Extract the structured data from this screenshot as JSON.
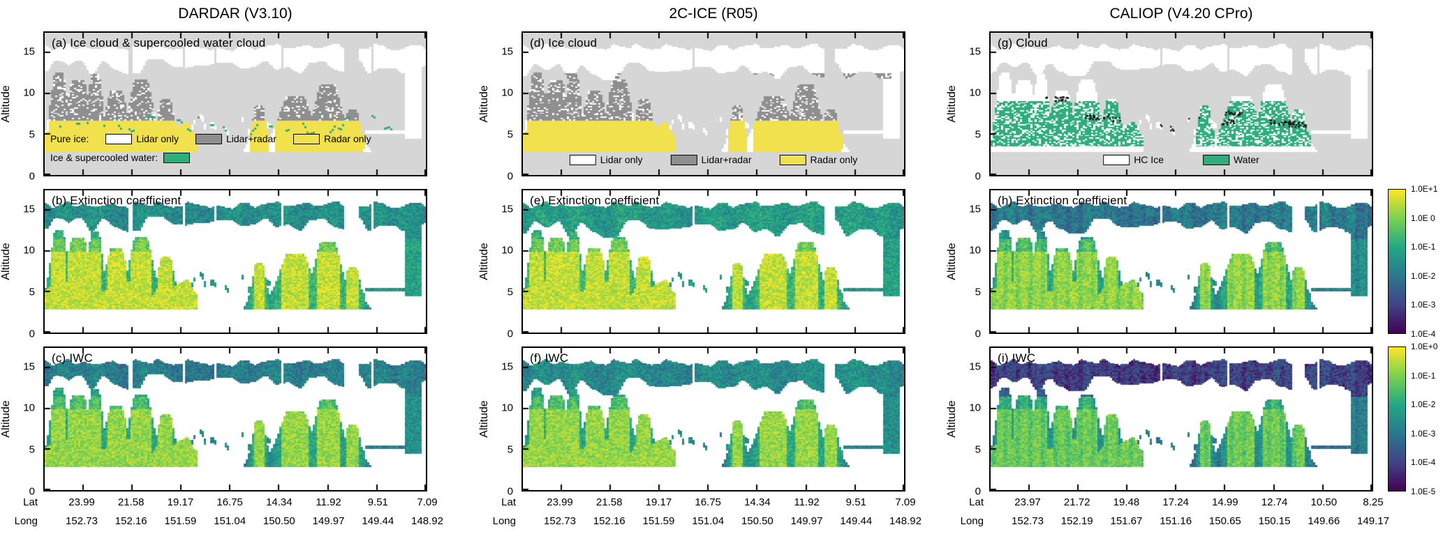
{
  "yaxis": {
    "label": "Altitude",
    "ticks": [
      "0",
      "5",
      "10",
      "15"
    ],
    "max": 17.4
  },
  "xaxis": {
    "lat_label": "Lat",
    "long_label": "Long"
  },
  "columns": [
    {
      "title": "DARDAR (V3.10)",
      "panels": [
        {
          "label": "(a) Ice cloud & supercooled water cloud"
        },
        {
          "label": "(b) Extinction coefficient"
        },
        {
          "label": "(c) IWC"
        }
      ],
      "lat": [
        "23.99",
        "21.58",
        "19.17",
        "16.75",
        "14.34",
        "11.92",
        "9.51",
        "7.09"
      ],
      "long": [
        "152.73",
        "152.16",
        "151.59",
        "151.04",
        "150.50",
        "149.97",
        "149.44",
        "148.92"
      ]
    },
    {
      "title": "2C-ICE (R05)",
      "panels": [
        {
          "label": "(d) Ice cloud"
        },
        {
          "label": "(e) Extinction coefficient"
        },
        {
          "label": "(f) IWC"
        }
      ],
      "lat": [
        "23.99",
        "21.58",
        "19.17",
        "16.75",
        "14.34",
        "11.92",
        "9.51",
        "7.09"
      ],
      "long": [
        "152.73",
        "152.16",
        "151.59",
        "151.04",
        "150.50",
        "149.97",
        "149.44",
        "148.92"
      ]
    },
    {
      "title": "CALIOP (V4.20 CPro)",
      "panels": [
        {
          "label": "(g) Cloud"
        },
        {
          "label": "(h) Extinction coefficient"
        },
        {
          "label": "(i) IWC"
        }
      ],
      "lat": [
        "23.97",
        "21.72",
        "19.48",
        "17.24",
        "14.99",
        "12.74",
        "10.50",
        "8.25"
      ],
      "long": [
        "152.73",
        "152.19",
        "151.67",
        "151.16",
        "150.65",
        "150.15",
        "149.66",
        "149.17"
      ]
    }
  ],
  "legends": {
    "dardar": {
      "row1_title": "Pure ice:",
      "row2_title": "Ice & supercooled water:",
      "items": [
        {
          "label": "Lidar only",
          "color": "#ffffff"
        },
        {
          "label": "Lidar+radar",
          "color": "#8f8f8f"
        },
        {
          "label": "Radar only",
          "color": "#f0e14d"
        }
      ],
      "water_color": "#2eae7c"
    },
    "twocice": {
      "items": [
        {
          "label": "Lidar only",
          "color": "#ffffff"
        },
        {
          "label": "Lidar+radar",
          "color": "#8f8f8f"
        },
        {
          "label": "Radar only",
          "color": "#f0e14d"
        }
      ]
    },
    "caliop": {
      "items": [
        {
          "label": "HC Ice",
          "color": "#ffffff"
        },
        {
          "label": "Water",
          "color": "#2eae7c"
        }
      ]
    }
  },
  "colorbars": [
    {
      "name": "extinction",
      "ticks": [
        "1.0E+1",
        "1.0E 0",
        "1.0E-1",
        "1.0E-2",
        "1.0E-3",
        "1.0E-4"
      ],
      "colors": [
        "#fde725",
        "#7ad151",
        "#22a884",
        "#2a788e",
        "#414487",
        "#440154"
      ]
    },
    {
      "name": "iwc",
      "ticks": [
        "1.0E+0",
        "1.0E-1",
        "1.0E-2",
        "1.0E-3",
        "1.0E-4",
        "1.0E-5"
      ],
      "colors": [
        "#fde725",
        "#7ad151",
        "#22a884",
        "#2a788e",
        "#414487",
        "#440154"
      ]
    }
  ],
  "chart_data": [
    {
      "panel": "a",
      "dataset": "DARDAR (V3.10)",
      "type": "heatmap",
      "subtype": "categorical cloud-mask curtain",
      "title": "Ice cloud & supercooled water cloud",
      "ylabel": "Altitude",
      "ylim": [
        0,
        17
      ],
      "x_lat": [
        23.99,
        21.58,
        19.17,
        16.75,
        14.34,
        11.92,
        9.51,
        7.09
      ],
      "x_long": [
        152.73,
        152.16,
        151.59,
        151.04,
        150.5,
        149.97,
        149.44,
        148.92
      ],
      "classes": [
        {
          "label": "Pure ice: Lidar only",
          "color": "#ffffff"
        },
        {
          "label": "Pure ice: Lidar+radar",
          "color": "#8f8f8f"
        },
        {
          "label": "Pure ice: Radar only",
          "color": "#f0e14d"
        },
        {
          "label": "Ice & supercooled water",
          "color": "#2eae7c"
        }
      ],
      "features": "Lidar-only cirrus shield 12-16.5 km along whole track; lidar+radar ice cores 5-12 km mostly between lat 24-17 and near lat 12-10; radar-only ice 3-7 km under the cores; thin supercooled-water streaks 5-8 km scattered along track"
    },
    {
      "panel": "b",
      "dataset": "DARDAR (V3.10)",
      "type": "heatmap",
      "subtype": "log-scaled value curtain",
      "title": "Extinction coefficient",
      "ylabel": "Altitude",
      "ylim": [
        0,
        17
      ],
      "x_lat": [
        23.99,
        21.58,
        19.17,
        16.75,
        14.34,
        11.92,
        9.51,
        7.09
      ],
      "x_long": [
        152.73,
        152.16,
        151.59,
        151.04,
        150.5,
        149.97,
        149.44,
        148.92
      ],
      "value_scale": "log10",
      "value_ticks": [
        "1.0E+1",
        "1.0E 0",
        "1.0E-1",
        "1.0E-2",
        "1.0E-3",
        "1.0E-4"
      ],
      "colormap": "viridis",
      "features": "Cirrus layer 12-16.5 km at ~1E-2 to 1E-1; convective towers lat 24-17 with yellow cores ~1E0-1E+1 at 4-12 km; scattered mid cloud 4-9 km near lat 14-9; small deep cell near lat 7"
    },
    {
      "panel": "c",
      "dataset": "DARDAR (V3.10)",
      "type": "heatmap",
      "subtype": "log-scaled value curtain",
      "title": "IWC",
      "ylabel": "Altitude",
      "ylim": [
        0,
        17
      ],
      "x_lat": [
        23.99,
        21.58,
        19.17,
        16.75,
        14.34,
        11.92,
        9.51,
        7.09
      ],
      "x_long": [
        152.73,
        152.16,
        151.59,
        151.04,
        150.5,
        149.97,
        149.44,
        148.92
      ],
      "value_scale": "log10",
      "value_ticks": [
        "1.0E+0",
        "1.0E-1",
        "1.0E-2",
        "1.0E-3",
        "1.0E-4",
        "1.0E-5"
      ],
      "colormap": "viridis",
      "features": "Same cloud field as (b); IWC ~1E-3 to 1E-2 in cirrus, yellow cores ~1E-1 to 1E0 in low/mid convective towers on the left third of the track"
    },
    {
      "panel": "d",
      "dataset": "2C-ICE (R05)",
      "type": "heatmap",
      "subtype": "categorical cloud-mask curtain",
      "title": "Ice cloud",
      "ylabel": "Altitude",
      "ylim": [
        0,
        17
      ],
      "x_lat": [
        23.99,
        21.58,
        19.17,
        16.75,
        14.34,
        11.92,
        9.51,
        7.09
      ],
      "x_long": [
        152.73,
        152.16,
        151.59,
        151.04,
        150.5,
        149.97,
        149.44,
        148.92
      ],
      "classes": [
        {
          "label": "Lidar only",
          "color": "#ffffff"
        },
        {
          "label": "Lidar+radar",
          "color": "#8f8f8f"
        },
        {
          "label": "Radar only",
          "color": "#f0e14d"
        }
      ],
      "features": "Ice-only mask: lidar-only cirrus 12-16.5 km; lidar+radar cores 5-12 km (lat 24-17, 12-10); radar-only 3-7 km below cores; no supercooled-water class"
    },
    {
      "panel": "e",
      "dataset": "2C-ICE (R05)",
      "type": "heatmap",
      "subtype": "log-scaled value curtain",
      "title": "Extinction coefficient",
      "ylabel": "Altitude",
      "ylim": [
        0,
        17
      ],
      "x_lat": [
        23.99,
        21.58,
        19.17,
        16.75,
        14.34,
        11.92,
        9.51,
        7.09
      ],
      "x_long": [
        152.73,
        152.16,
        151.59,
        151.04,
        150.5,
        149.97,
        149.44,
        148.92
      ],
      "value_scale": "log10",
      "value_ticks": [
        "1.0E+1",
        "1.0E 0",
        "1.0E-1",
        "1.0E-2",
        "1.0E-3",
        "1.0E-4"
      ],
      "colormap": "viridis",
      "features": "Denser, more continuous cirrus deck 12-16 km than DARDAR; strong yellow cores ~1E0-1E+1 in towers lat 24-17 and in the 4-8 km mass near lat 12-10"
    },
    {
      "panel": "f",
      "dataset": "2C-ICE (R05)",
      "type": "heatmap",
      "subtype": "log-scaled value curtain",
      "title": "IWC",
      "ylabel": "Altitude",
      "ylim": [
        0,
        17
      ],
      "x_lat": [
        23.99,
        21.58,
        19.17,
        16.75,
        14.34,
        11.92,
        9.51,
        7.09
      ],
      "x_long": [
        152.73,
        152.16,
        151.59,
        151.04,
        150.5,
        149.97,
        149.44,
        148.92
      ],
      "value_scale": "log10",
      "value_ticks": [
        "1.0E+0",
        "1.0E-1",
        "1.0E-2",
        "1.0E-3",
        "1.0E-4",
        "1.0E-5"
      ],
      "colormap": "viridis",
      "features": "Same field as (e); cirrus deck mostly 1E-3 to 1E-2, blue/purple thin cloud at deck top, yellow IWC cores in low-mid towers"
    },
    {
      "panel": "g",
      "dataset": "CALIOP (V4.20 CPro)",
      "type": "heatmap",
      "subtype": "categorical cloud-mask curtain",
      "title": "Cloud",
      "ylabel": "Altitude",
      "ylim": [
        0,
        17
      ],
      "x_lat": [
        23.97,
        21.72,
        19.48,
        17.24,
        14.99,
        12.74,
        10.5,
        8.25
      ],
      "x_long": [
        152.73,
        152.19,
        151.67,
        151.16,
        150.65,
        150.15,
        149.66,
        149.17
      ],
      "classes": [
        {
          "label": "HC Ice",
          "color": "#ffffff"
        },
        {
          "label": "Water",
          "color": "#2eae7c"
        }
      ],
      "features": "HC Ice (white) cloud 10-16.5 km along track; Water (green) layers 4-9 km clustered lat 24-17 and 15-10; strings of black dots mark layers near 5-10 km"
    },
    {
      "panel": "h",
      "dataset": "CALIOP (V4.20 CPro)",
      "type": "heatmap",
      "subtype": "log-scaled value curtain",
      "title": "Extinction coefficient",
      "ylabel": "Altitude",
      "ylim": [
        0,
        17
      ],
      "x_lat": [
        23.97,
        21.72,
        19.48,
        17.24,
        14.99,
        12.74,
        10.5,
        8.25
      ],
      "x_long": [
        152.73,
        152.19,
        151.67,
        151.16,
        150.65,
        150.15,
        149.66,
        149.17
      ],
      "value_scale": "log10",
      "value_ticks": [
        "1.0E+1",
        "1.0E 0",
        "1.0E-1",
        "1.0E-2",
        "1.0E-3",
        "1.0E-4"
      ],
      "colormap": "viridis",
      "features": "Lidar-only retrieval: cirrus 12-16.5 km teal/green with vertical striping; limited penetration into deep towers; yellow-green core near lat 19-17 around 8-12 km"
    },
    {
      "panel": "i",
      "dataset": "CALIOP (V4.20 CPro)",
      "type": "heatmap",
      "subtype": "log-scaled value curtain",
      "title": "IWC",
      "ylabel": "Altitude",
      "ylim": [
        0,
        17
      ],
      "x_lat": [
        23.97,
        21.72,
        19.48,
        17.24,
        14.99,
        12.74,
        10.5,
        8.25
      ],
      "x_long": [
        152.73,
        152.19,
        151.67,
        151.16,
        150.65,
        150.15,
        149.66,
        149.17
      ],
      "value_scale": "log10",
      "value_ticks": [
        "1.0E+0",
        "1.0E-1",
        "1.0E-2",
        "1.0E-3",
        "1.0E-4",
        "1.0E-5"
      ],
      "colormap": "viridis",
      "features": "Cirrus deck dominated by low IWC (blue/purple, ~1E-4 to 1E-3) with teal-green patches; sparse retrievals below 10 km"
    }
  ]
}
